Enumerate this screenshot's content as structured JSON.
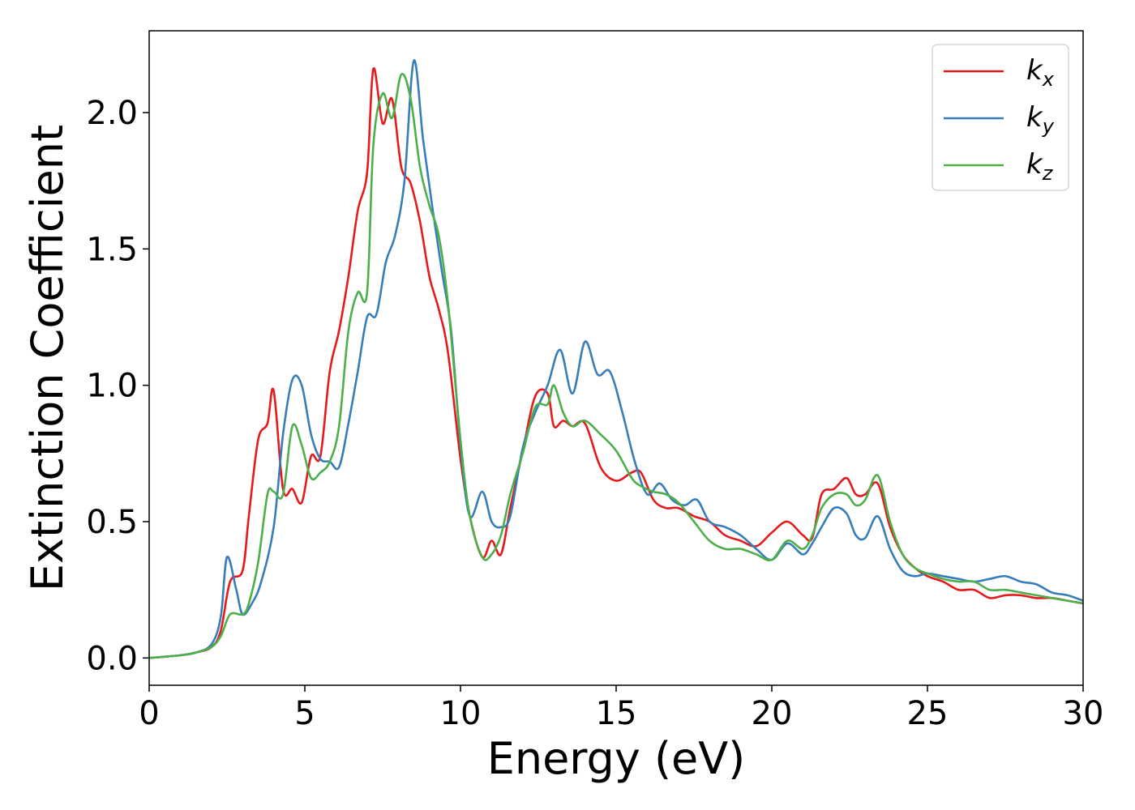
{
  "chart_data": {
    "type": "line",
    "xlabel": "Energy (eV)",
    "ylabel": "Extinction Coefficient",
    "xlim": [
      0,
      30
    ],
    "ylim": [
      -0.1,
      2.3
    ],
    "xticks": [
      0,
      5,
      10,
      15,
      20,
      25,
      30
    ],
    "xtick_labels": [
      "0",
      "5",
      "10",
      "15",
      "20",
      "25",
      "30"
    ],
    "yticks": [
      0.0,
      0.5,
      1.0,
      1.5,
      2.0
    ],
    "ytick_labels": [
      "0.0",
      "0.5",
      "1.0",
      "1.5",
      "2.0"
    ],
    "grid": false,
    "legend_position": "top-right",
    "series": [
      {
        "name": "k",
        "subscript": "x",
        "color": "#e41a1c",
        "x": [
          0,
          1,
          1.5,
          2,
          2.3,
          2.6,
          3,
          3.2,
          3.5,
          3.8,
          4,
          4.3,
          4.6,
          4.9,
          5.2,
          5.5,
          5.8,
          6.1,
          6.4,
          6.7,
          7,
          7.2,
          7.5,
          7.8,
          8.1,
          8.4,
          8.7,
          9,
          9.3,
          9.6,
          10,
          10.3,
          10.7,
          11,
          11.3,
          11.6,
          12,
          12.4,
          12.8,
          13,
          13.3,
          13.6,
          14,
          14.5,
          15,
          15.5,
          15.8,
          16.2,
          16.6,
          17,
          17.5,
          18,
          18.5,
          19,
          19.5,
          20,
          20.5,
          21,
          21.3,
          21.6,
          22,
          22.4,
          22.7,
          23,
          23.4,
          23.8,
          24.2,
          24.6,
          25,
          25.5,
          26,
          26.5,
          27,
          27.5,
          28,
          28.5,
          29,
          29.5,
          30
        ],
        "y": [
          0,
          0.01,
          0.02,
          0.04,
          0.1,
          0.28,
          0.32,
          0.52,
          0.8,
          0.86,
          0.98,
          0.62,
          0.62,
          0.57,
          0.74,
          0.74,
          1.05,
          1.2,
          1.4,
          1.64,
          1.78,
          2.16,
          1.96,
          2.05,
          1.8,
          1.74,
          1.6,
          1.4,
          1.28,
          1.12,
          0.73,
          0.52,
          0.37,
          0.43,
          0.38,
          0.55,
          0.76,
          0.96,
          0.97,
          0.85,
          0.87,
          0.85,
          0.86,
          0.7,
          0.65,
          0.68,
          0.68,
          0.58,
          0.55,
          0.55,
          0.52,
          0.5,
          0.45,
          0.43,
          0.41,
          0.46,
          0.5,
          0.45,
          0.44,
          0.6,
          0.62,
          0.66,
          0.6,
          0.6,
          0.64,
          0.48,
          0.38,
          0.33,
          0.3,
          0.28,
          0.25,
          0.25,
          0.22,
          0.23,
          0.23,
          0.22,
          0.22,
          0.21,
          0.2
        ]
      },
      {
        "name": "k",
        "subscript": "y",
        "color": "#377eb8",
        "x": [
          0,
          1,
          1.5,
          2,
          2.3,
          2.5,
          2.8,
          3,
          3.3,
          3.6,
          4,
          4.3,
          4.6,
          4.9,
          5.2,
          5.5,
          5.8,
          6.1,
          6.4,
          6.7,
          7,
          7.3,
          7.6,
          7.9,
          8.2,
          8.5,
          8.8,
          9.1,
          9.4,
          9.7,
          10,
          10.3,
          10.7,
          11,
          11.3,
          11.6,
          12,
          12.4,
          12.8,
          13.2,
          13.6,
          14,
          14.4,
          14.8,
          15.2,
          15.6,
          16,
          16.4,
          16.8,
          17.2,
          17.6,
          18,
          18.5,
          19,
          19.5,
          20,
          20.5,
          21,
          21.3,
          21.6,
          22,
          22.4,
          22.7,
          23,
          23.4,
          23.8,
          24.2,
          24.6,
          25,
          25.5,
          26,
          26.5,
          27,
          27.5,
          28,
          28.5,
          29,
          29.5,
          30
        ],
        "y": [
          0,
          0.01,
          0.02,
          0.05,
          0.15,
          0.37,
          0.25,
          0.16,
          0.2,
          0.28,
          0.48,
          0.82,
          1.02,
          1.0,
          0.82,
          0.73,
          0.72,
          0.7,
          0.86,
          1.05,
          1.25,
          1.26,
          1.45,
          1.55,
          1.75,
          2.19,
          1.9,
          1.65,
          1.42,
          1.2,
          0.78,
          0.52,
          0.61,
          0.5,
          0.48,
          0.52,
          0.77,
          0.9,
          1.0,
          1.13,
          0.97,
          1.16,
          1.04,
          1.05,
          0.9,
          0.72,
          0.6,
          0.64,
          0.58,
          0.56,
          0.58,
          0.5,
          0.48,
          0.45,
          0.4,
          0.36,
          0.42,
          0.38,
          0.42,
          0.48,
          0.55,
          0.53,
          0.45,
          0.44,
          0.52,
          0.4,
          0.32,
          0.3,
          0.31,
          0.3,
          0.29,
          0.28,
          0.29,
          0.3,
          0.28,
          0.27,
          0.24,
          0.23,
          0.21
        ]
      },
      {
        "name": "k",
        "subscript": "z",
        "color": "#4daf4a",
        "x": [
          0,
          1,
          1.5,
          2,
          2.3,
          2.6,
          3,
          3.2,
          3.5,
          3.8,
          4,
          4.3,
          4.6,
          4.9,
          5.2,
          5.5,
          5.8,
          6.1,
          6.4,
          6.7,
          7,
          7.2,
          7.5,
          7.8,
          8.1,
          8.4,
          8.7,
          9,
          9.3,
          9.6,
          10,
          10.3,
          10.7,
          11,
          11.3,
          11.6,
          12,
          12.4,
          12.8,
          13,
          13.3,
          13.6,
          14,
          14.5,
          15,
          15.5,
          15.8,
          16.2,
          16.6,
          17,
          17.5,
          18,
          18.5,
          19,
          19.5,
          20,
          20.5,
          21,
          21.3,
          21.6,
          22,
          22.4,
          22.7,
          23,
          23.4,
          23.8,
          24.2,
          24.6,
          25,
          25.5,
          26,
          26.5,
          27,
          27.5,
          28,
          28.5,
          29,
          29.5,
          30
        ],
        "y": [
          0,
          0.01,
          0.02,
          0.04,
          0.08,
          0.16,
          0.16,
          0.2,
          0.35,
          0.6,
          0.61,
          0.6,
          0.85,
          0.78,
          0.66,
          0.68,
          0.72,
          0.85,
          1.2,
          1.34,
          1.34,
          1.88,
          2.07,
          1.98,
          2.14,
          2.05,
          1.8,
          1.66,
          1.55,
          1.3,
          0.8,
          0.52,
          0.37,
          0.38,
          0.45,
          0.6,
          0.75,
          0.92,
          0.93,
          1.0,
          0.9,
          0.85,
          0.87,
          0.82,
          0.76,
          0.66,
          0.63,
          0.61,
          0.6,
          0.57,
          0.5,
          0.43,
          0.4,
          0.4,
          0.38,
          0.36,
          0.43,
          0.4,
          0.45,
          0.55,
          0.6,
          0.6,
          0.56,
          0.58,
          0.67,
          0.5,
          0.38,
          0.33,
          0.31,
          0.29,
          0.28,
          0.28,
          0.25,
          0.25,
          0.24,
          0.23,
          0.22,
          0.21,
          0.2
        ]
      }
    ]
  }
}
